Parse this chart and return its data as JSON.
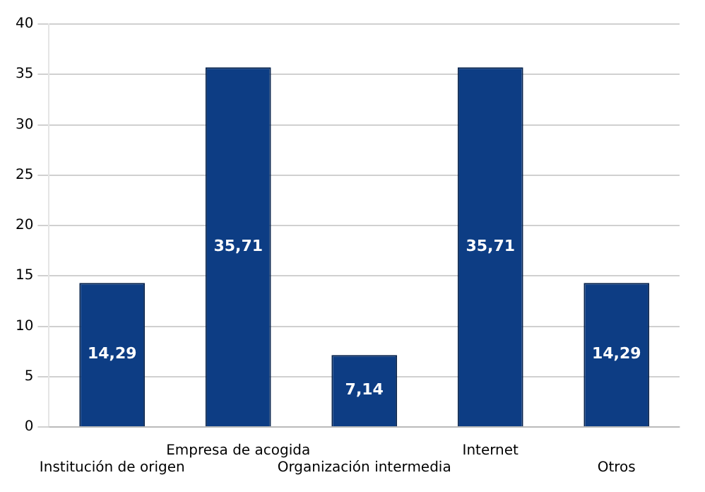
{
  "chart_data": {
    "type": "bar",
    "categories": [
      "Institución de origen",
      "Empresa de acogida",
      "Organización intermedia",
      "Internet",
      "Otros"
    ],
    "values": [
      14.29,
      35.71,
      7.14,
      35.71,
      14.29
    ],
    "value_labels": [
      "14,29",
      "35,71",
      "7,14",
      "35,71",
      "14,29"
    ],
    "color": "#0d3d84",
    "ylim": [
      0,
      40
    ],
    "yticks": [
      0,
      5,
      10,
      15,
      20,
      25,
      30,
      35,
      40
    ],
    "grid": "y",
    "legend": false
  }
}
